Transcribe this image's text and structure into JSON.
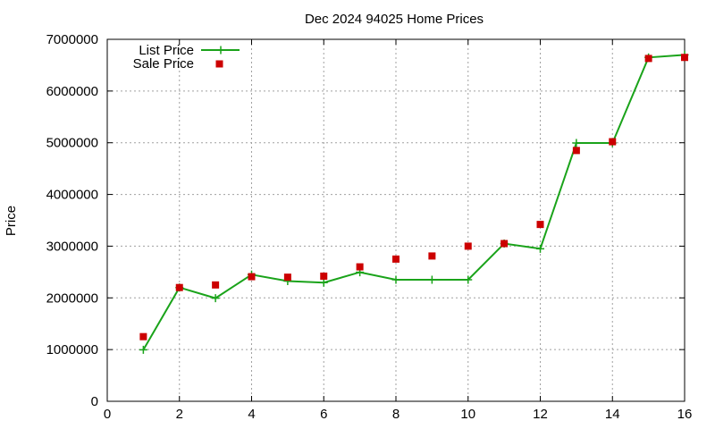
{
  "chart_data": {
    "type": "line",
    "title": "Dec 2024 94025 Home Prices",
    "xlabel": "",
    "ylabel": "Price",
    "xlim": [
      0,
      16
    ],
    "ylim": [
      0,
      7000000
    ],
    "x_ticks": [
      0,
      2,
      4,
      6,
      8,
      10,
      12,
      14,
      16
    ],
    "y_ticks": [
      0,
      1000000,
      2000000,
      3000000,
      4000000,
      5000000,
      6000000,
      7000000
    ],
    "grid": true,
    "legend_position": "top-left",
    "series": [
      {
        "name": "List Price",
        "style": "line+cross",
        "color": "#1aa31a",
        "x": [
          1,
          2,
          3,
          4,
          5,
          6,
          7,
          8,
          9,
          10,
          11,
          12,
          13,
          14,
          15,
          16
        ],
        "values": [
          995000,
          2200000,
          1995000,
          2450000,
          2325000,
          2295000,
          2495000,
          2350000,
          2350000,
          2350000,
          3050000,
          2950000,
          4995000,
          4995000,
          6650000,
          6700000
        ]
      },
      {
        "name": "Sale Price",
        "style": "square-points",
        "color": "#cc0000",
        "x": [
          1,
          2,
          3,
          4,
          5,
          6,
          7,
          8,
          9,
          10,
          11,
          12,
          13,
          14,
          15,
          16
        ],
        "values": [
          1250000,
          2200000,
          2250000,
          2410000,
          2400000,
          2420000,
          2600000,
          2750000,
          2810000,
          3000000,
          3050000,
          3420000,
          4850000,
          5020000,
          6630000,
          6650000
        ]
      }
    ]
  }
}
